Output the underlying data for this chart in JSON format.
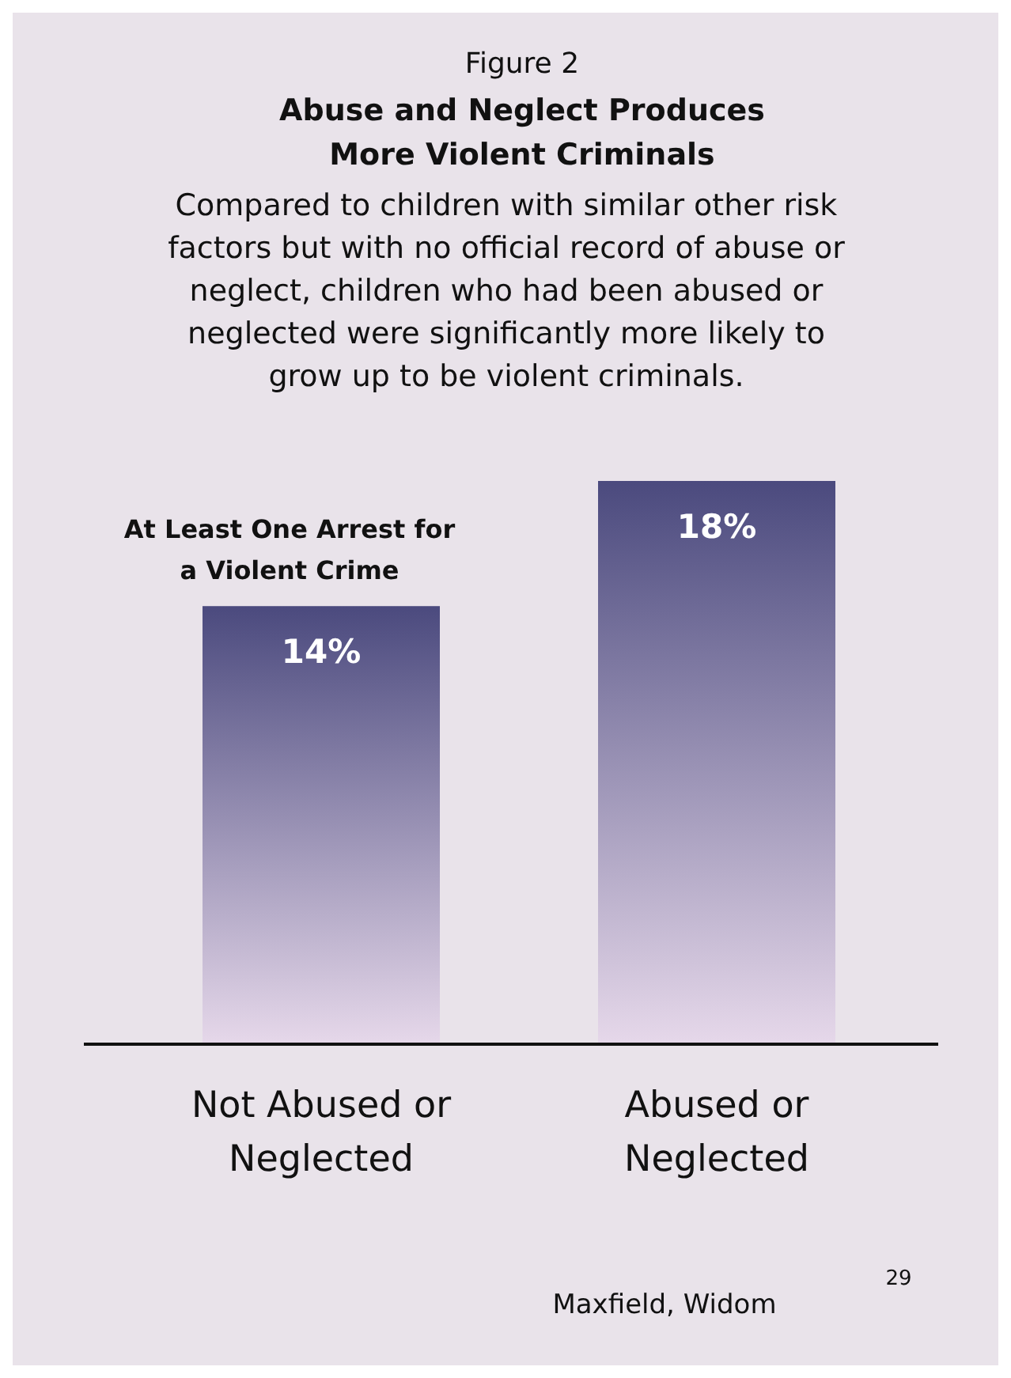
{
  "chart_data": {
    "type": "bar",
    "title": "Abuse and Neglect Produces More Violent Criminals",
    "subtitle": "Compared to children with similar other risk factors but with no official record of abuse or neglect, children who had been abused or neglected were significantly more likely to grow up to be violent criminals.",
    "annotations": [
      "Figure 2",
      "At Least One Arrest for a Violent Crime",
      "Maxfield, Widom",
      "29"
    ],
    "categories": [
      "Not Abused or Neglected",
      "Abused or Neglected"
    ],
    "values": [
      14,
      18
    ],
    "value_labels": [
      "14%",
      "18%"
    ],
    "color": "#4b4a7e"
  }
}
